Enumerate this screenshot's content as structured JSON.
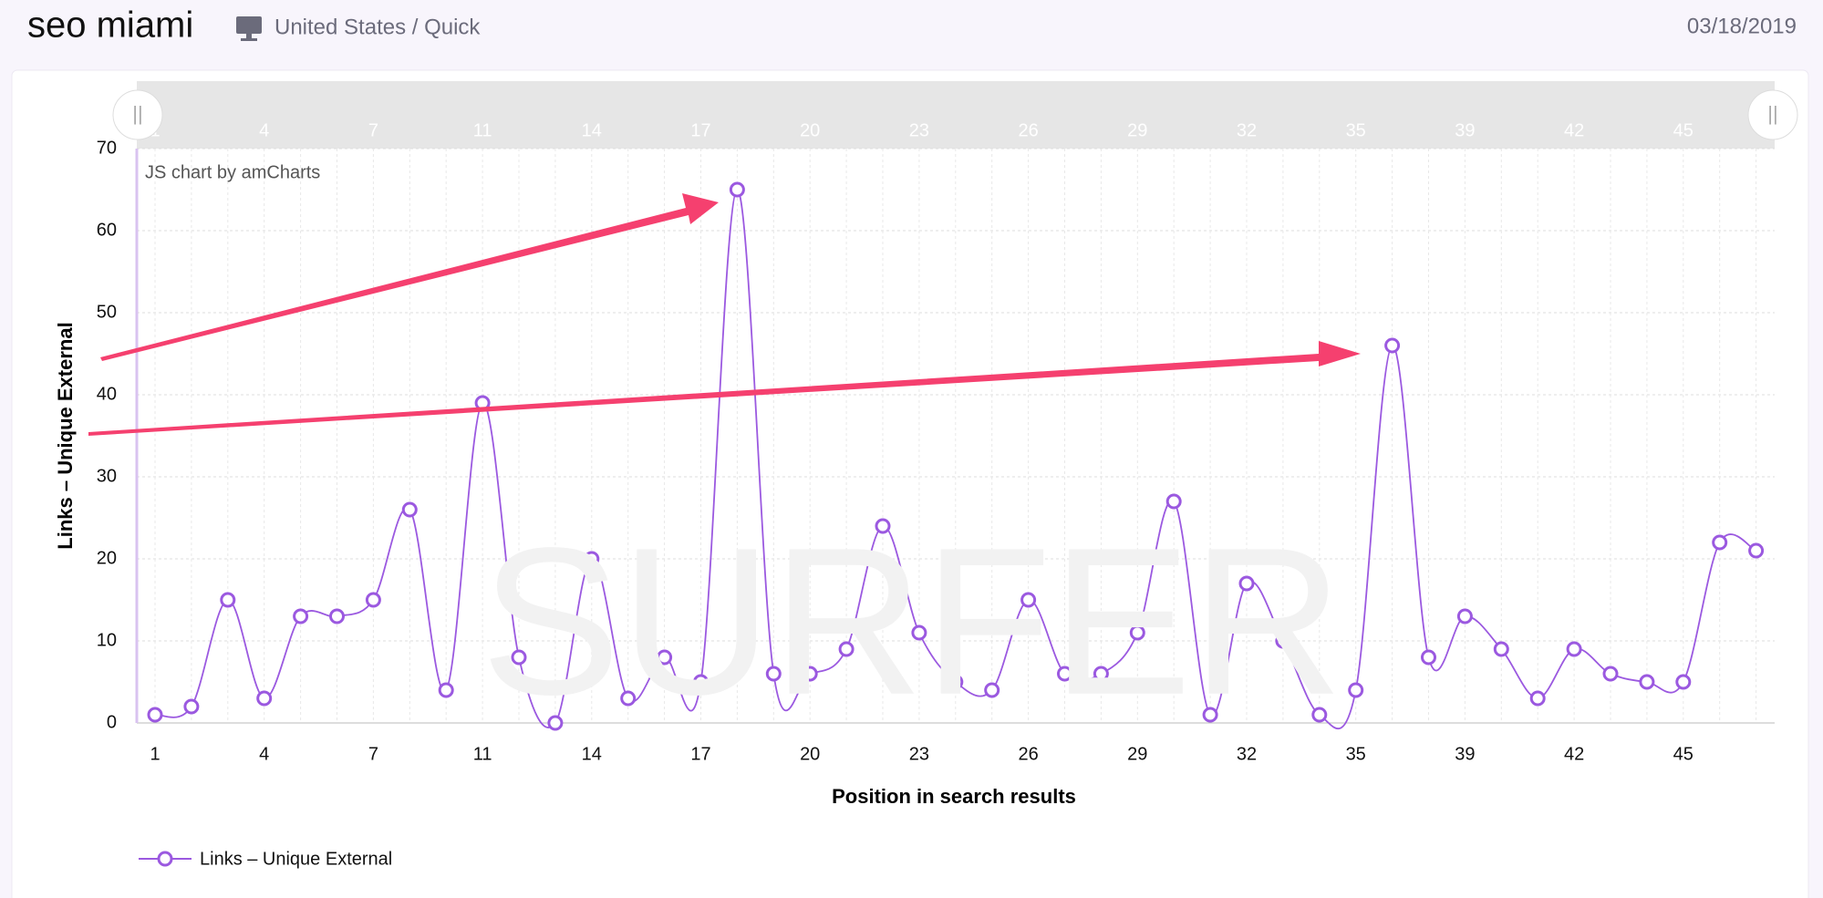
{
  "header": {
    "title": "seo miami",
    "location": "United States / Quick",
    "date": "03/18/2019"
  },
  "chart_data": {
    "type": "line",
    "credit": "JS chart by amCharts",
    "watermark": "SURFER",
    "x_label": "Position in search results",
    "y_label": "Links – Unique External",
    "categories": [
      "1",
      null,
      null,
      "4",
      null,
      null,
      "7",
      null,
      null,
      "11",
      null,
      null,
      "14",
      null,
      null,
      "17",
      null,
      null,
      "20",
      null,
      null,
      "23",
      null,
      null,
      "26",
      null,
      null,
      "29",
      null,
      null,
      "32",
      null,
      null,
      "35",
      null,
      null,
      "39",
      null,
      null,
      "42",
      null,
      null,
      "45",
      null,
      null
    ],
    "series": [
      {
        "name": "Links – Unique External",
        "color": "#9b59e0",
        "values": [
          1,
          2,
          15,
          3,
          13,
          13,
          15,
          26,
          4,
          39,
          8,
          0,
          20,
          3,
          8,
          5,
          65,
          6,
          6,
          9,
          24,
          11,
          5,
          4,
          15,
          6,
          6,
          11,
          27,
          1,
          17,
          10,
          1,
          4,
          46,
          8,
          13,
          9,
          3,
          9,
          6,
          5,
          5,
          22,
          21
        ]
      }
    ],
    "ylim": [
      0,
      70
    ],
    "yticks": [
      0,
      10,
      20,
      30,
      40,
      50,
      60,
      70
    ],
    "grid": true
  }
}
